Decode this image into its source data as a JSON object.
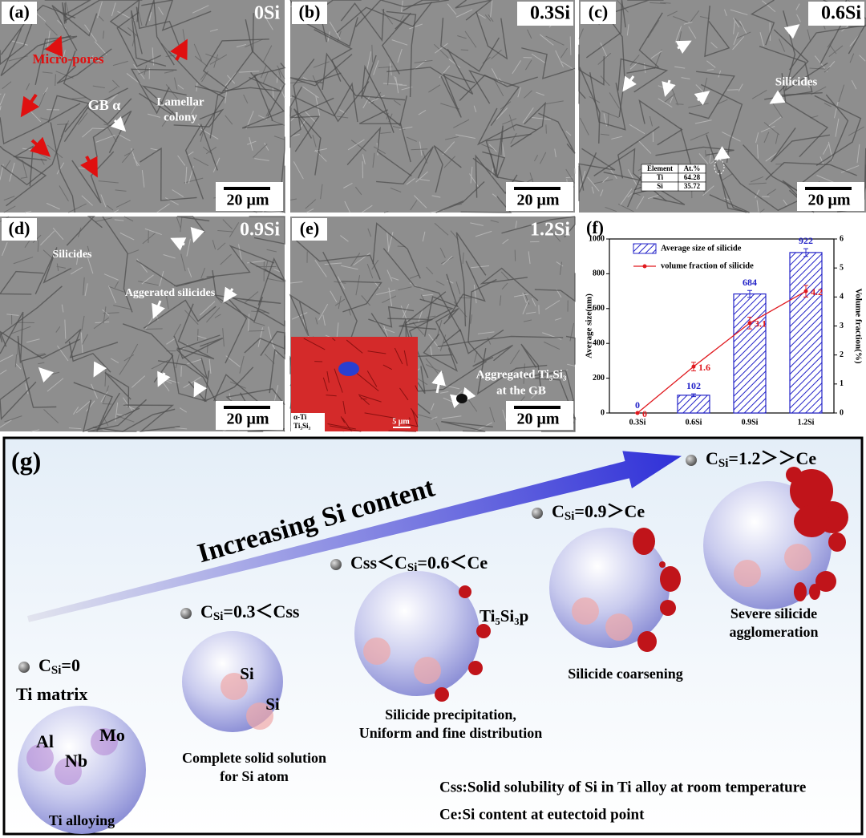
{
  "panels": [
    {
      "label": "(a)",
      "sample": "0Si",
      "scale": "20 μm",
      "annotations": [
        "Micro-pores",
        "GB α",
        "Lamellar",
        "colony"
      ]
    },
    {
      "label": "(b)",
      "sample": "0.3Si",
      "scale": "20 μm",
      "annotations": []
    },
    {
      "label": "(c)",
      "sample": "0.6Si",
      "scale": "20 μm",
      "annotations": [
        "Silicides"
      ],
      "table": [
        [
          "Element",
          "At.%"
        ],
        [
          "Ti",
          "64.28"
        ],
        [
          "Si",
          "35.72"
        ]
      ]
    },
    {
      "label": "(d)",
      "sample": "0.9Si",
      "scale": "20 μm",
      "annotations": [
        "Silicides",
        "Aggerated silicides"
      ]
    },
    {
      "label": "(e)",
      "sample": "1.2Si",
      "scale": "20 μm",
      "annotations": [
        "Aggregated Ti₅Si₃",
        "at the GB"
      ],
      "inset": [
        "α-Ti",
        "Ti₅Si₃",
        "5 μm"
      ]
    }
  ],
  "chart_data": {
    "type": "bar",
    "panel_label": "(f)",
    "categories": [
      "0.3Si",
      "0.6Si",
      "0.9Si",
      "1.2Si"
    ],
    "series": [
      {
        "name": "Average size of silicide",
        "type": "bar",
        "color": "#2323c8",
        "values": [
          0,
          102,
          684,
          922
        ],
        "errors": [
          0,
          8,
          20,
          22
        ]
      },
      {
        "name": "volume fraction of silicide",
        "type": "line",
        "axis": "y2",
        "color": "#e0191e",
        "values": [
          0,
          1.6,
          3.1,
          4.2
        ],
        "errors": [
          0,
          0.15,
          0.2,
          0.2
        ]
      }
    ],
    "ylabel": "Average size(nm)",
    "y2label": "Volume fraction(%)",
    "ylim": [
      0,
      1000
    ],
    "yticks": [
      0,
      200,
      400,
      600,
      800,
      1000
    ],
    "y2lim": [
      0,
      6
    ],
    "y2ticks": [
      0,
      1,
      2,
      3,
      4,
      5,
      6
    ],
    "legend": "upper left"
  },
  "schematic": {
    "label": "(g)",
    "arrow_text": "Increasing Si content",
    "stages": [
      {
        "condition": [
          {
            "text": "C"
          },
          {
            "text": "Si",
            "sub": true
          },
          {
            "text": "=0"
          }
        ],
        "texts": [
          "Ti matrix",
          "Al",
          "Mo",
          "Nb"
        ],
        "caption": [
          "Ti alloying"
        ]
      },
      {
        "condition": [
          {
            "text": "C"
          },
          {
            "text": "Si",
            "sub": true
          },
          {
            "text": "=0.3＜Css"
          }
        ],
        "texts": [
          "Si",
          "Si"
        ],
        "caption": [
          "Complete solid solution",
          "for Si atom"
        ]
      },
      {
        "condition": [
          {
            "text": "Css＜C"
          },
          {
            "text": "Si",
            "sub": true
          },
          {
            "text": "=0.6＜Ce"
          }
        ],
        "texts": [
          "Ti₅Si₃p"
        ],
        "caption": [
          "Silicide precipitation,",
          "Uniform and fine distribution"
        ]
      },
      {
        "condition": [
          {
            "text": "C"
          },
          {
            "text": "Si",
            "sub": true
          },
          {
            "text": "=0.9＞Ce"
          }
        ],
        "texts": [],
        "caption": [
          "Silicide coarsening"
        ]
      },
      {
        "condition": [
          {
            "text": "C"
          },
          {
            "text": "Si",
            "sub": true
          },
          {
            "text": "=1.2＞＞Ce"
          }
        ],
        "texts": [],
        "caption": [
          "Severe silicide",
          "agglomeration"
        ]
      }
    ],
    "notes": [
      "Css:Solid solubility of Si in Ti alloy at room temperature",
      "Ce:Si content at eutectoid point"
    ]
  }
}
